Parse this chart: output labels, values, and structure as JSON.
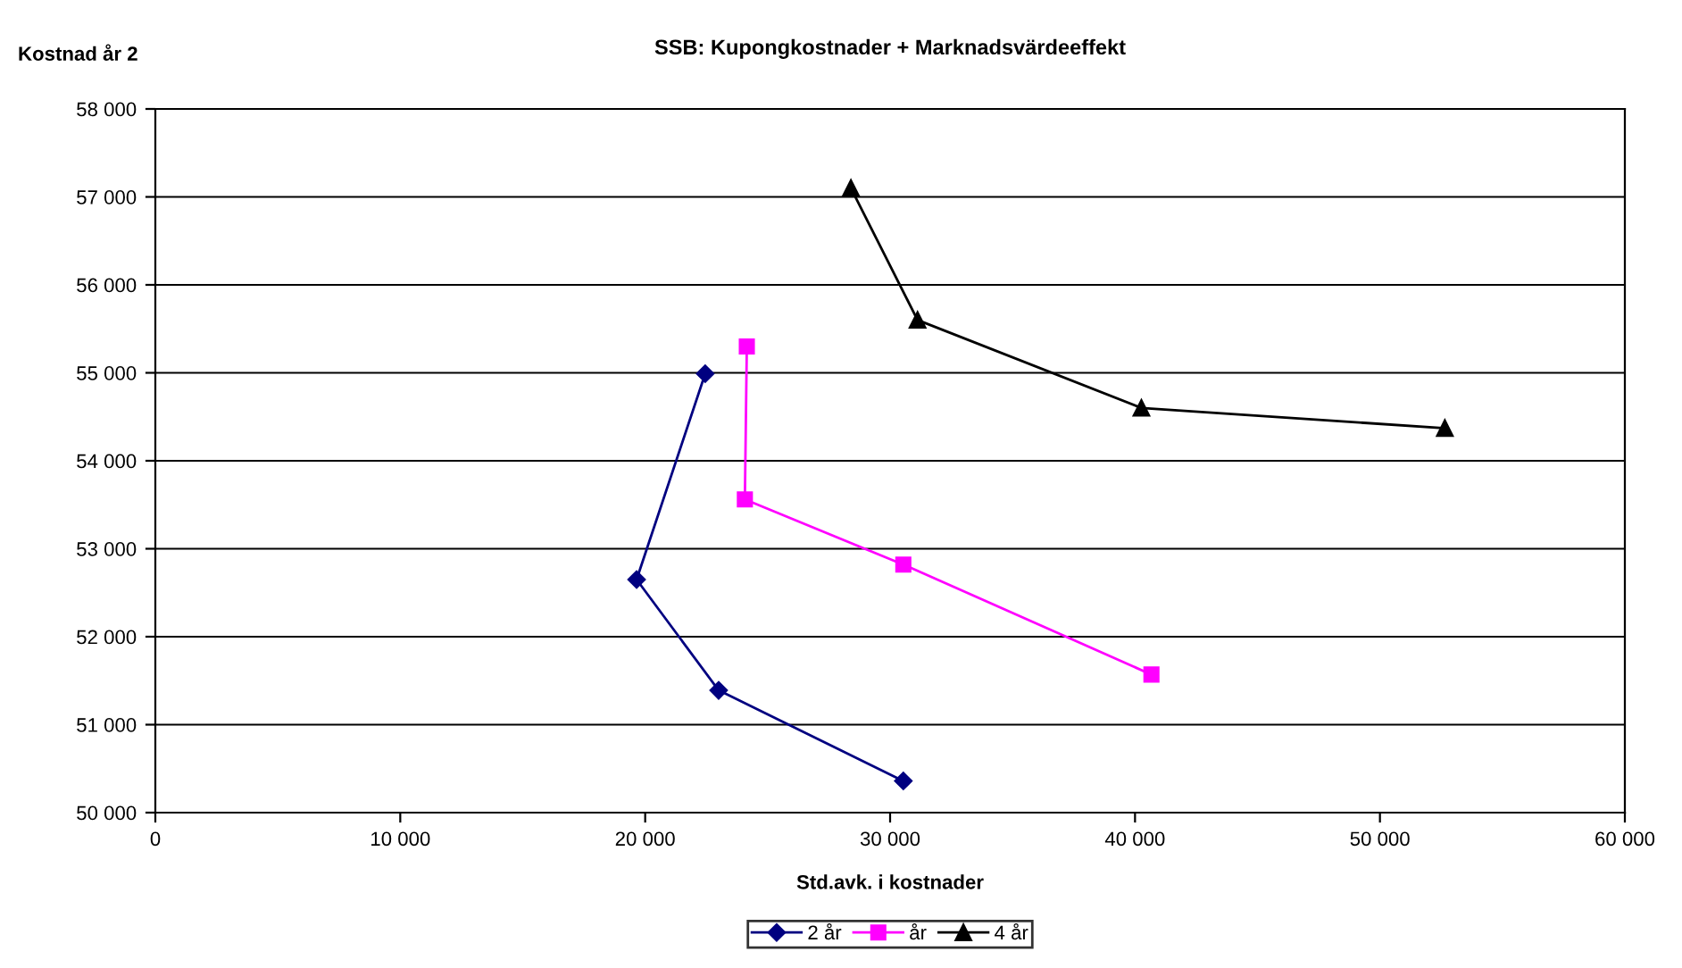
{
  "chart_data": {
    "type": "line",
    "title": "SSB: Kupongkostnader + Marknadsvärdeeffekt",
    "xlabel": "Std.avk. i kostnader",
    "ylabel": "Kostnad år 2",
    "series": [
      {
        "name": "2 år",
        "color": "#000080",
        "marker": "diamond",
        "x": [
          22450,
          19650,
          23000,
          30540
        ],
        "values": [
          54990,
          52650,
          51390,
          50360
        ]
      },
      {
        "name": "år",
        "color": "#ff00ff",
        "marker": "square",
        "x": [
          24150,
          24070,
          30540,
          40670
        ],
        "values": [
          55300,
          53560,
          52820,
          51570
        ]
      },
      {
        "name": "4 år",
        "color": "#000000",
        "marker": "triangle",
        "x": [
          28400,
          31120,
          40260,
          52650
        ],
        "values": [
          57100,
          55600,
          54600,
          54370
        ]
      }
    ],
    "xlim": [
      0,
      60000
    ],
    "xticks": [
      {
        "value": 0,
        "label": "0"
      },
      {
        "value": 10000,
        "label": "10 000"
      },
      {
        "value": 20000,
        "label": "20 000"
      },
      {
        "value": 30000,
        "label": "30 000"
      },
      {
        "value": 40000,
        "label": "40 000"
      },
      {
        "value": 50000,
        "label": "50 000"
      },
      {
        "value": 60000,
        "label": "60 000"
      }
    ],
    "ylim": [
      50000,
      58000
    ],
    "yticks": [
      {
        "value": 50000,
        "label": "50 000"
      },
      {
        "value": 51000,
        "label": "51 000"
      },
      {
        "value": 52000,
        "label": "52 000"
      },
      {
        "value": 53000,
        "label": "53 000"
      },
      {
        "value": 54000,
        "label": "54 000"
      },
      {
        "value": 55000,
        "label": "55 000"
      },
      {
        "value": 56000,
        "label": "56 000"
      },
      {
        "value": 57000,
        "label": "57 000"
      },
      {
        "value": 58000,
        "label": "58 000"
      }
    ],
    "grid": "y",
    "legend": "bottom",
    "line_style": "solid"
  }
}
